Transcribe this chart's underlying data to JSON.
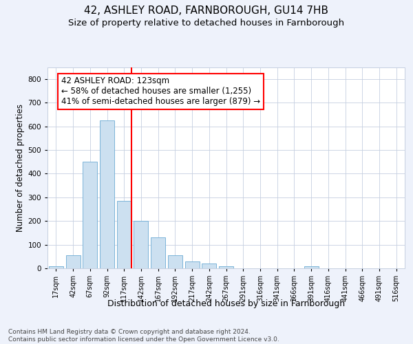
{
  "title1": "42, ASHLEY ROAD, FARNBOROUGH, GU14 7HB",
  "title2": "Size of property relative to detached houses in Farnborough",
  "xlabel": "Distribution of detached houses by size in Farnborough",
  "ylabel": "Number of detached properties",
  "footnote": "Contains HM Land Registry data © Crown copyright and database right 2024.\nContains public sector information licensed under the Open Government Licence v3.0.",
  "annotation_line1": "42 ASHLEY ROAD: 123sqm",
  "annotation_line2": "← 58% of detached houses are smaller (1,255)",
  "annotation_line3": "41% of semi-detached houses are larger (879) →",
  "bar_categories": [
    "17sqm",
    "42sqm",
    "67sqm",
    "92sqm",
    "117sqm",
    "142sqm",
    "167sqm",
    "192sqm",
    "217sqm",
    "242sqm",
    "267sqm",
    "291sqm",
    "316sqm",
    "341sqm",
    "366sqm",
    "391sqm",
    "416sqm",
    "441sqm",
    "466sqm",
    "491sqm",
    "516sqm"
  ],
  "bar_values": [
    10,
    55,
    450,
    625,
    285,
    200,
    130,
    55,
    30,
    20,
    10,
    0,
    0,
    0,
    0,
    8,
    0,
    0,
    0,
    0,
    0
  ],
  "bar_color": "#cce0f0",
  "bar_edge_color": "#6aaad4",
  "marker_bin_index": 4,
  "marker_color": "red",
  "ylim": [
    0,
    850
  ],
  "yticks": [
    0,
    100,
    200,
    300,
    400,
    500,
    600,
    700,
    800
  ],
  "background_color": "#eef2fb",
  "plot_background": "#ffffff",
  "grid_color": "#c5cfe0",
  "title1_fontsize": 11,
  "title2_fontsize": 9.5,
  "annotation_fontsize": 8.5,
  "xlabel_fontsize": 9,
  "ylabel_fontsize": 8.5,
  "tick_fontsize": 7,
  "footnote_fontsize": 6.5
}
